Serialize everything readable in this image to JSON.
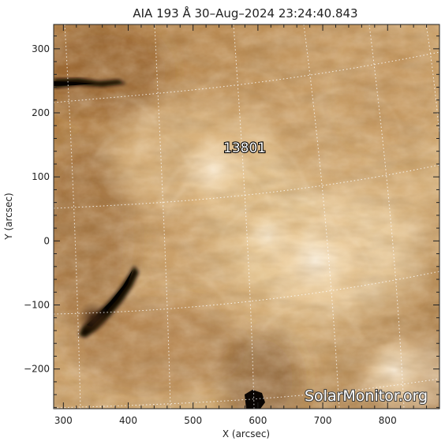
{
  "title": "AIA 193 Å 30–Aug–2024  23:24:40.843",
  "axes": {
    "xlabel": "X (arcsec)",
    "ylabel": "Y (arcsec)",
    "xlim": [
      285,
      880
    ],
    "ylim": [
      -262,
      338
    ],
    "xticks": [
      300,
      400,
      500,
      600,
      700,
      800
    ],
    "yticks": [
      300,
      200,
      100,
      0,
      -100,
      -200
    ],
    "xtick_labels": [
      "300",
      "400",
      "500",
      "600",
      "700",
      "800"
    ],
    "ytick_labels": [
      "300",
      "200",
      "100",
      "0",
      "−100",
      "−200"
    ]
  },
  "image": {
    "instrument": "AIA",
    "wavelength": "193 Å",
    "colormap": "sdoaia193",
    "palette": {
      "dark": "#120a04",
      "mid": "#b07a3c",
      "bright": "#f6e3c4",
      "white": "#fffaf0"
    },
    "grid_style": "dotted",
    "grid_color": "#ffffff"
  },
  "active_region": {
    "label": "13801"
  },
  "watermark": {
    "text": "SolarMonitor.org"
  }
}
